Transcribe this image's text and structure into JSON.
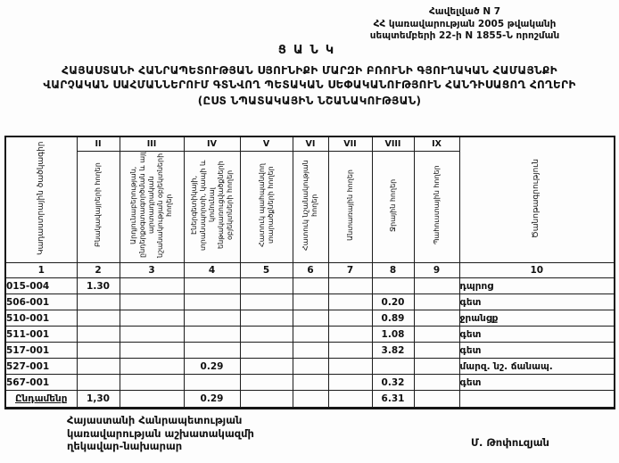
{
  "appendix": {
    "line1": "Հավելված N 7",
    "line2": "ՀՀ կառավարության 2005 թվականի",
    "line3": "սեպտեմբերի 22-ի N 1855-Ն որոշման"
  },
  "title": "ՑԱՆԿ",
  "subtitle": {
    "line1": "ՀԱՅԱՍՏԱՆԻ ՀԱՆՐԱՊԵՏՈՒԹՅԱՆ ՍՅՈՒՆԻՔԻ ՄԱՐԶԻ ԲՌՈՒՆԻ ԳՅՈՒՂԱԿԱՆ ՀԱՄԱՅՆՔԻ",
    "line2": "ՎԱՐՉԱԿԱՆ ՍԱՀՄԱՆՆԵՐՈՒՄ ԳՏՆՎՈՂ ՊԵՏԱԿԱՆ ՍԵՓԱԿԱՆՈՒԹՅՈՒՆ ՀԱՆԴԻՍԱՑՈՂ ՀՈՂԵՐԻ",
    "line3": "(ԸՍՏ ՆՊԱՏԱԿԱՅԻՆ ՆՇԱՆԱԿՈՒԹՅԱՆ)"
  },
  "table": {
    "corner_header": "Կադաստրային ծածկագիր",
    "note_header": "Ծանոթագրություն",
    "roman": [
      "II",
      "III",
      "IV",
      "V",
      "VI",
      "VII",
      "VIII",
      "IX"
    ],
    "rotated_headers": [
      "Բնակավայրերի հողեր",
      "Արդյունաբերության, ընդերքօգտագործման և այլ արտադրական նշանակության օբյեկտների հողեր",
      "Էներգետիկայի, տրանսպորտի, կապի և կոմունալ ենթակառուցվածքների օբյեկտների հողեր",
      "Հատուկ պահպանվող տարածքների հողեր",
      "Հատուկ նշանակության հողեր",
      "Անտառային հողեր",
      "Ջրային հողեր",
      "Պահուստային հողեր"
    ],
    "numbers": [
      "1",
      "2",
      "3",
      "4",
      "5",
      "6",
      "7",
      "8",
      "9",
      "10"
    ],
    "rows": [
      {
        "code": "015-004",
        "c2": "1.30",
        "c3": "",
        "c4": "",
        "c5": "",
        "c6": "",
        "c7": "",
        "c8": "",
        "c9": "",
        "note": "դպրոց"
      },
      {
        "code": "506-001",
        "c2": "",
        "c3": "",
        "c4": "",
        "c5": "",
        "c6": "",
        "c7": "",
        "c8": "0.20",
        "c9": "",
        "note": "գետ"
      },
      {
        "code": "510-001",
        "c2": "",
        "c3": "",
        "c4": "",
        "c5": "",
        "c6": "",
        "c7": "",
        "c8": "0.89",
        "c9": "",
        "note": "ջրանցք"
      },
      {
        "code": "511-001",
        "c2": "",
        "c3": "",
        "c4": "",
        "c5": "",
        "c6": "",
        "c7": "",
        "c8": "1.08",
        "c9": "",
        "note": "գետ"
      },
      {
        "code": "517-001",
        "c2": "",
        "c3": "",
        "c4": "",
        "c5": "",
        "c6": "",
        "c7": "",
        "c8": "3.82",
        "c9": "",
        "note": "գետ"
      },
      {
        "code": "527-001",
        "c2": "",
        "c3": "",
        "c4": "0.29",
        "c5": "",
        "c6": "",
        "c7": "",
        "c8": "",
        "c9": "",
        "note": "մարզ. նշ. ճանապ."
      },
      {
        "code": "567-001",
        "c2": "",
        "c3": "",
        "c4": "",
        "c5": "",
        "c6": "",
        "c7": "",
        "c8": "0.32",
        "c9": "",
        "note": "գետ"
      }
    ],
    "total": {
      "label": "Ընդամենը",
      "c2": "1,30",
      "c3": "",
      "c4": "0.29",
      "c5": "",
      "c6": "",
      "c7": "",
      "c8": "6.31",
      "c9": "",
      "note": ""
    }
  },
  "footer": {
    "left_line1": "Հայաստանի Հանրապետության",
    "left_line2": "կառավարության աշխատակազմի",
    "left_line3": "ղեկավար-նախարար",
    "signature": "Մ. Թոփուզյան"
  }
}
